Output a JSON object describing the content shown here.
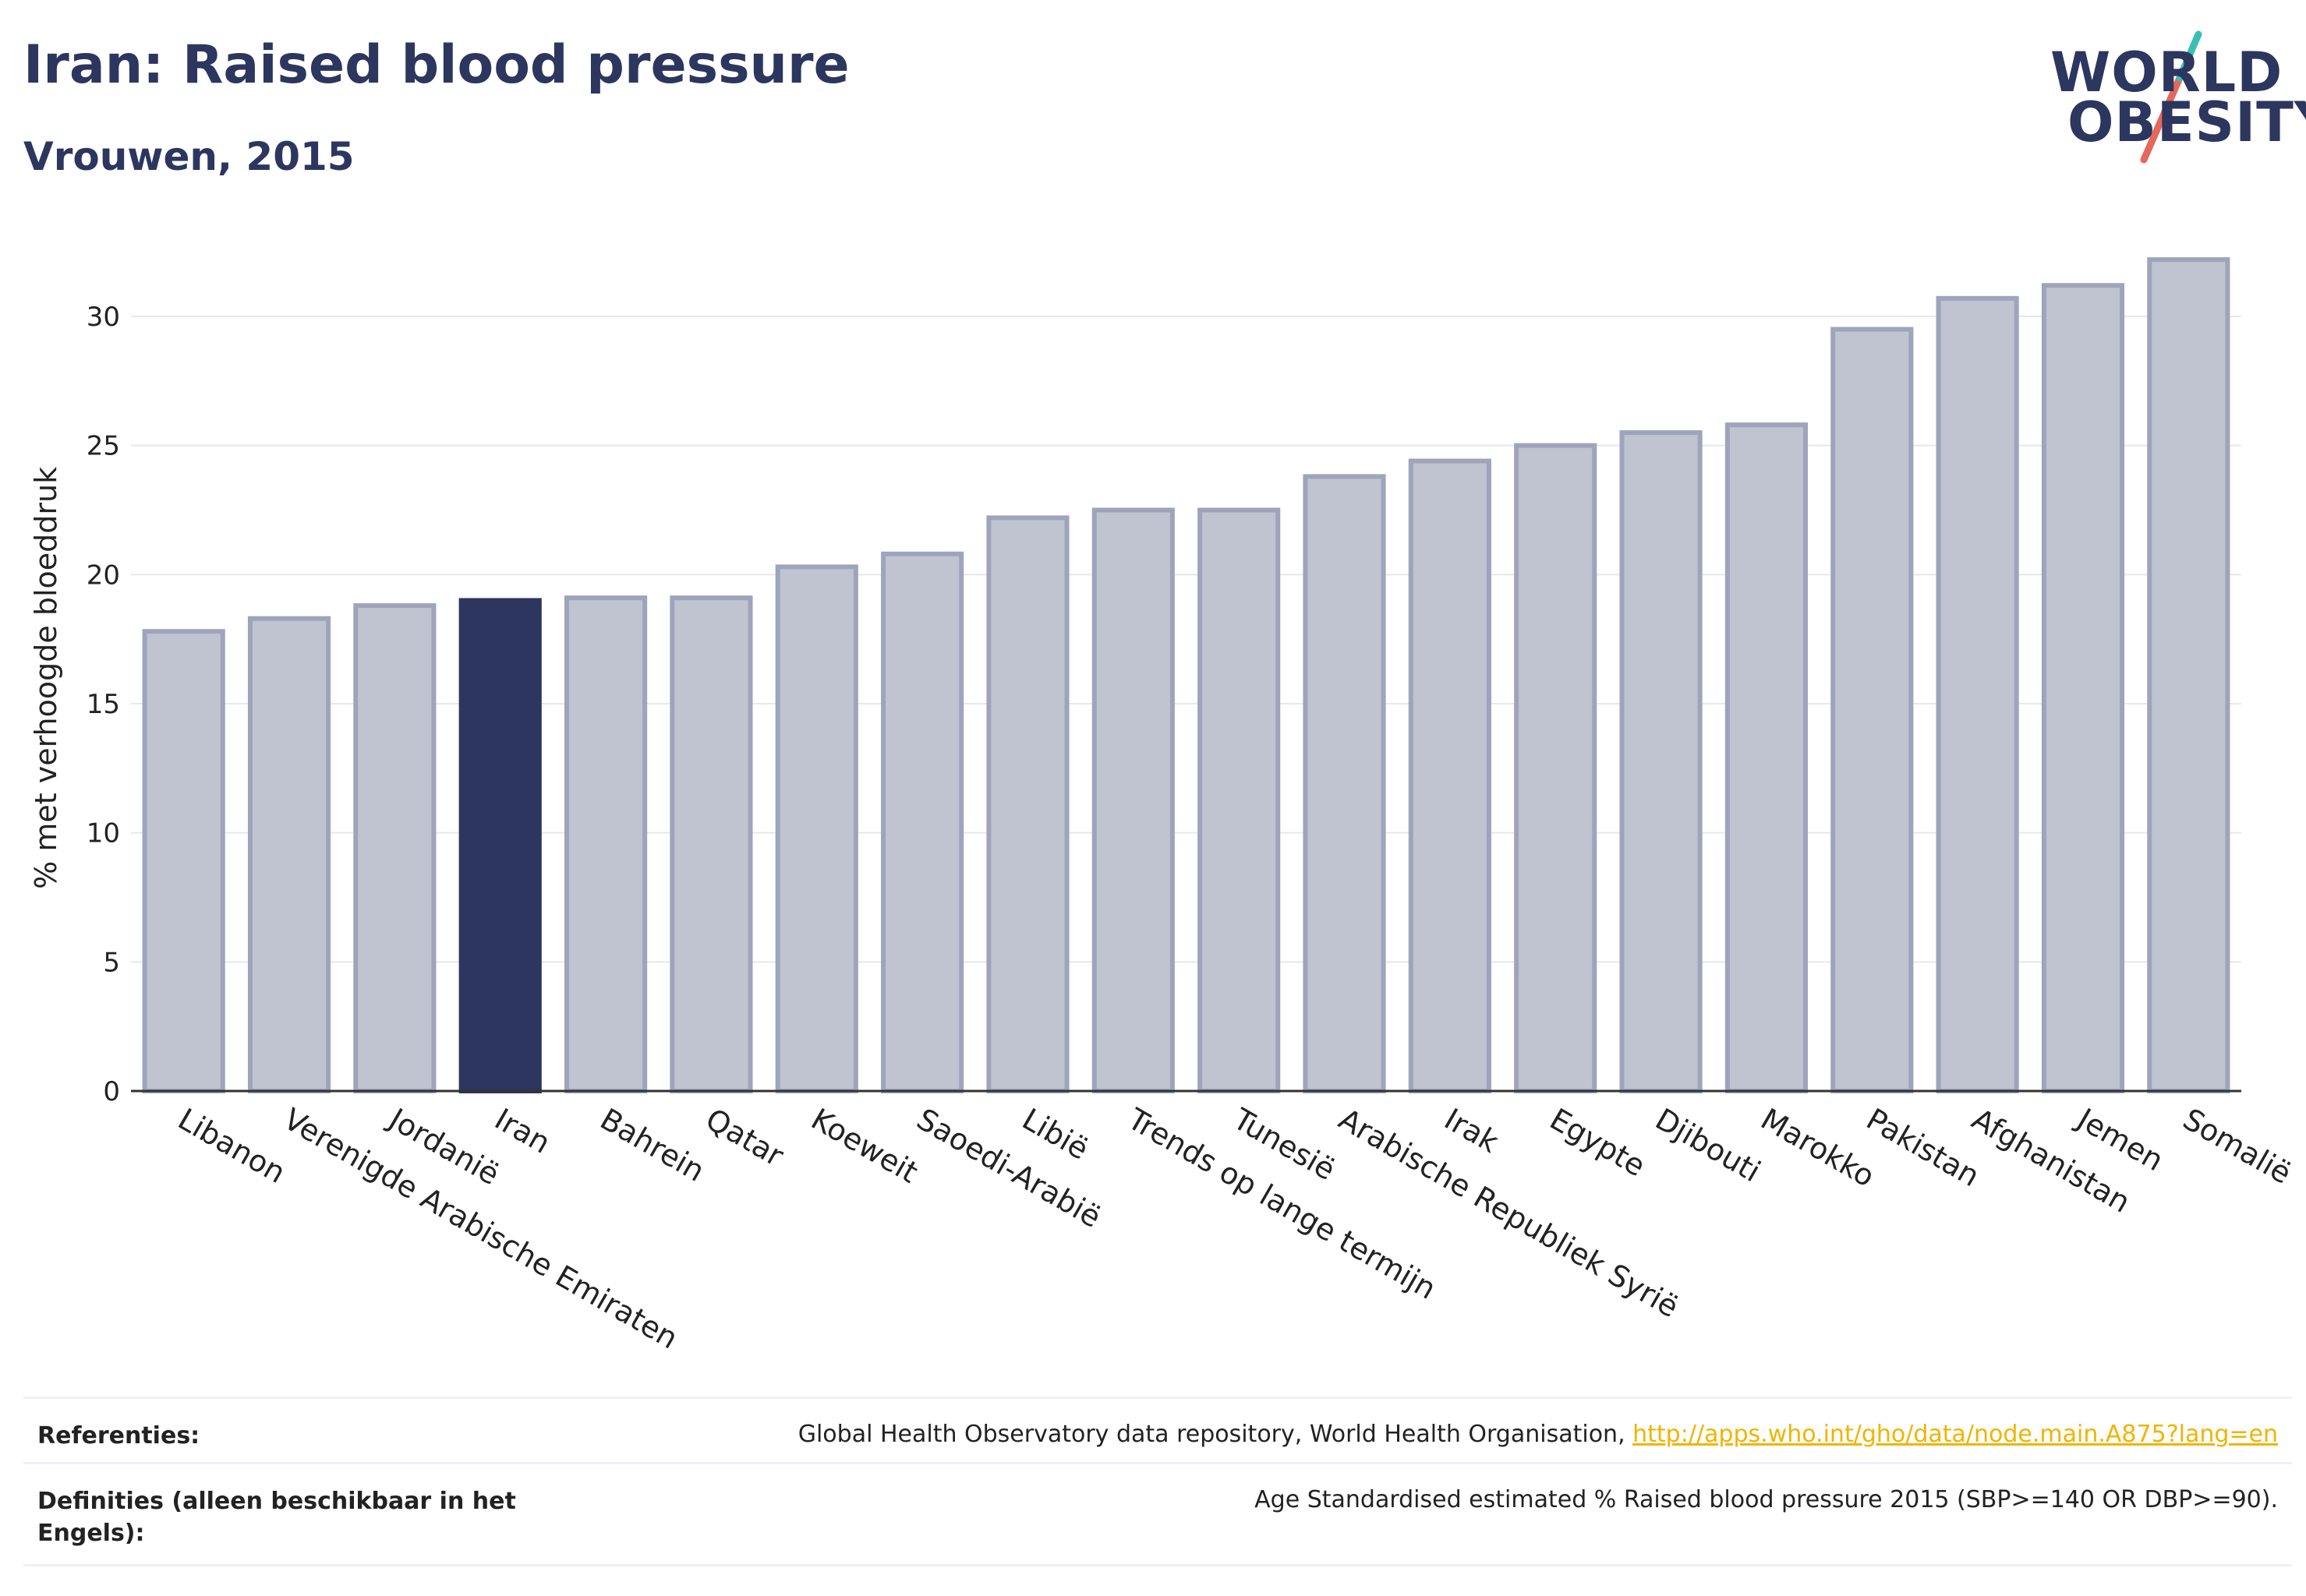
{
  "header": {
    "title": "Iran: Raised blood pressure",
    "subtitle": "Vrouwen, 2015"
  },
  "logo": {
    "line1": "WORLD",
    "line2": "OBESITY"
  },
  "chart_data": {
    "type": "bar",
    "title": "Iran: Raised blood pressure",
    "subtitle": "Vrouwen, 2015",
    "xlabel": "",
    "ylabel": "% met verhoogde bloeddruk",
    "ylim": [
      0,
      33
    ],
    "yticks": [
      0,
      5,
      10,
      15,
      20,
      25,
      30
    ],
    "grid": true,
    "highlight_category": "Iran",
    "colors": {
      "bar": "#c0c4d0",
      "bar_edge": "#9ea4bb",
      "highlight": "#2c365e",
      "grid": "#e8e8ec",
      "axis": "#333333"
    },
    "categories": [
      "Libanon",
      "Verenigde Arabische Emiraten",
      "Jordanië",
      "Iran",
      "Bahrein",
      "Qatar",
      "Koeweit",
      "Saoedi-Arabië",
      "Libië",
      "Trends op lange termijn",
      "Tunesië",
      "Arabische Republiek Syrië",
      "Irak",
      "Egypte",
      "Djibouti",
      "Marokko",
      "Pakistan",
      "Afghanistan",
      "Jemen",
      "Somalië"
    ],
    "values": [
      17.8,
      18.3,
      18.8,
      19.0,
      19.1,
      19.1,
      20.3,
      20.8,
      22.2,
      22.5,
      22.5,
      23.8,
      24.4,
      25.0,
      25.5,
      25.8,
      29.5,
      30.7,
      31.2,
      32.2
    ]
  },
  "footer": {
    "references_label": "Referenties:",
    "references_text": "Global Health Observatory data repository, World Health Organisation, ",
    "references_link": "http://apps.who.int/gho/data/node.main.A875?lang=en",
    "definitions_label": "Definities (alleen beschikbaar in het Engels):",
    "definitions_text": "Age Standardised estimated % Raised blood pressure 2015 (SBP>=140 OR DBP>=90)."
  }
}
